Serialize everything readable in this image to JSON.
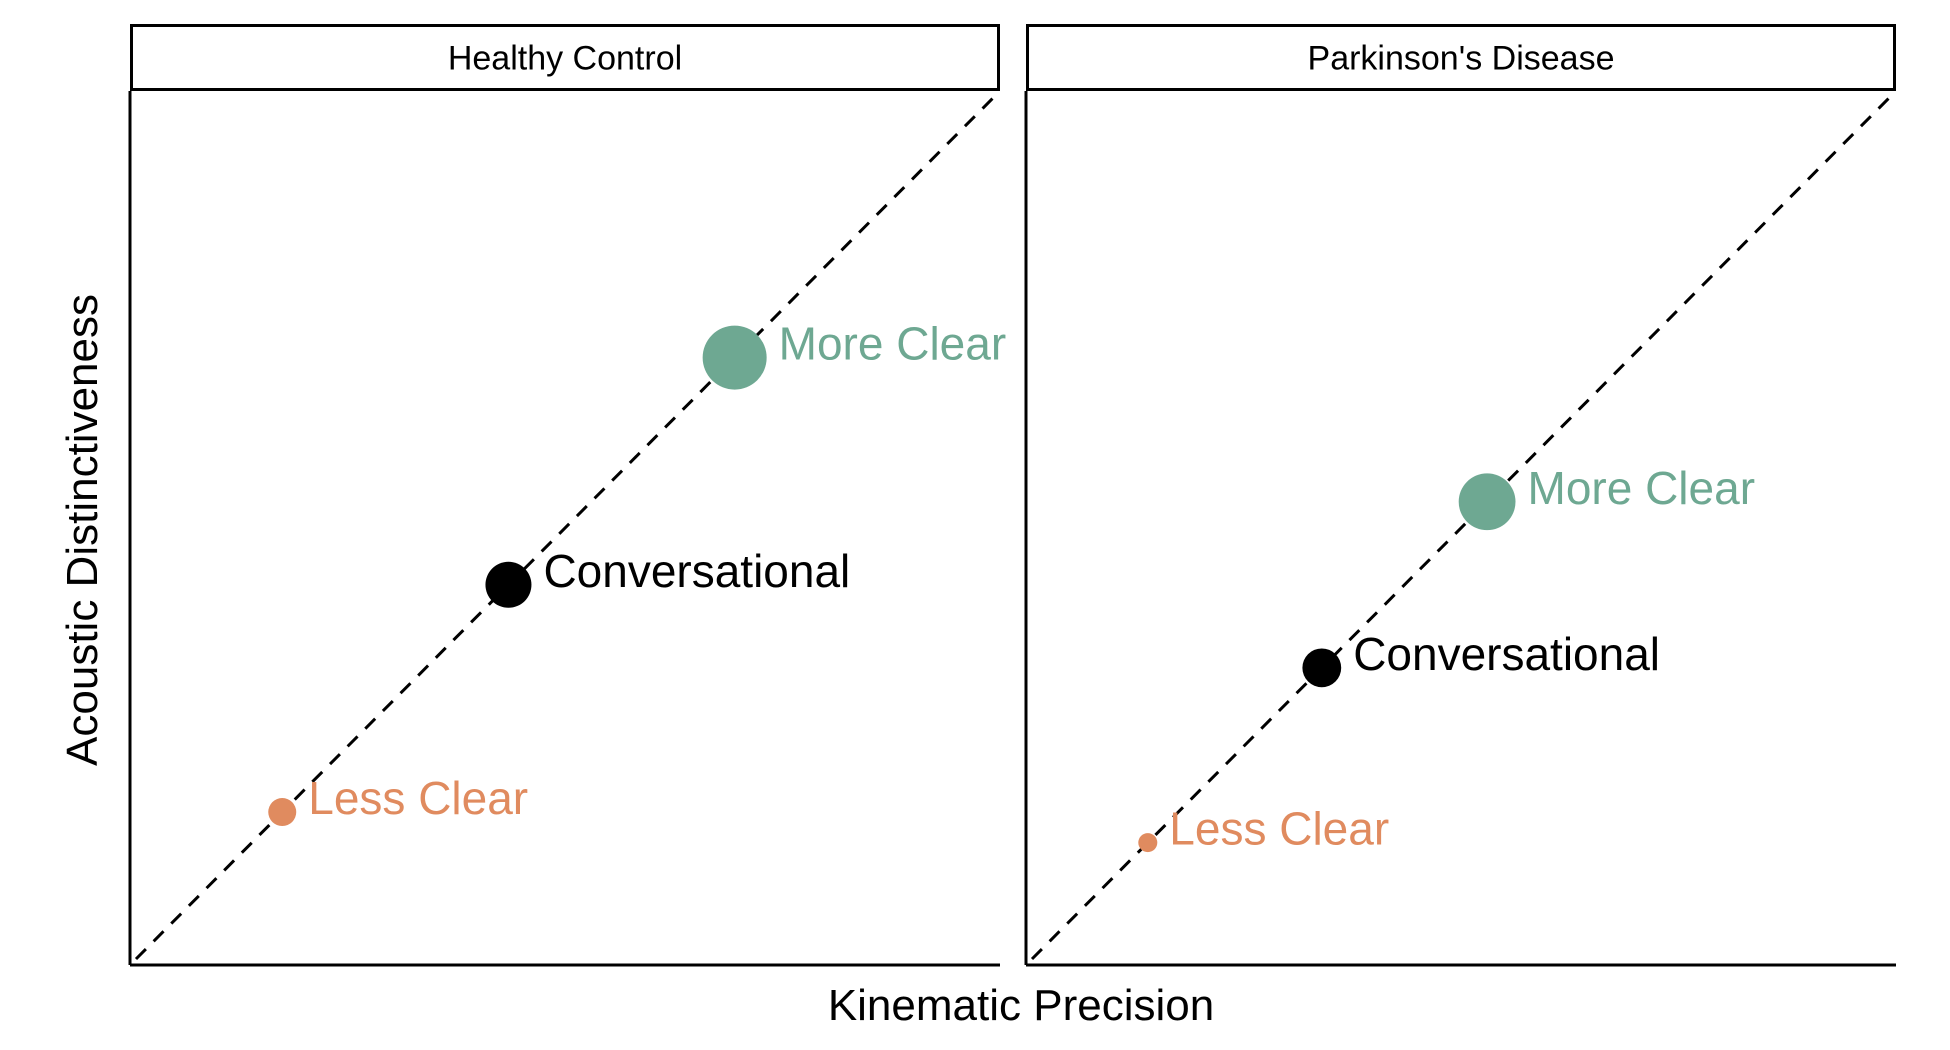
{
  "chart_data": {
    "type": "scatter",
    "xlabel": "Kinematic Precision",
    "ylabel": "Acoustic Distinctiveness",
    "xlim": [
      0,
      10
    ],
    "ylim": [
      0,
      10
    ],
    "grid": false,
    "facets": [
      {
        "label": "Healthy Control",
        "reference_line": {
          "type": "identity",
          "style": "dashed",
          "x": [
            0,
            10
          ],
          "y": [
            0,
            10
          ]
        },
        "points": [
          {
            "condition": "Less Clear",
            "x": 1.75,
            "y": 1.75,
            "size": 1,
            "color": "#e08b5f"
          },
          {
            "condition": "Conversational",
            "x": 4.35,
            "y": 4.35,
            "size": 2,
            "color": "#000000"
          },
          {
            "condition": "More Clear",
            "x": 6.95,
            "y": 6.95,
            "size": 3,
            "color": "#6ea892"
          }
        ]
      },
      {
        "label": "Parkinson's Disease",
        "reference_line": {
          "type": "identity",
          "style": "dashed",
          "x": [
            0,
            10
          ],
          "y": [
            0,
            10
          ]
        },
        "points": [
          {
            "condition": "Less Clear",
            "x": 1.4,
            "y": 1.4,
            "size": 0.5,
            "color": "#e08b5f"
          },
          {
            "condition": "Conversational",
            "x": 3.4,
            "y": 3.4,
            "size": 1.6,
            "color": "#000000"
          },
          {
            "condition": "More Clear",
            "x": 5.3,
            "y": 5.3,
            "size": 2.6,
            "color": "#6ea892"
          }
        ]
      }
    ]
  }
}
